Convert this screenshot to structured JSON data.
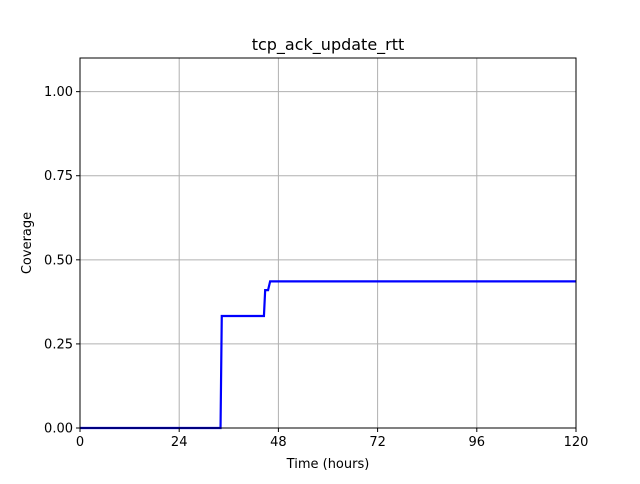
{
  "chart_data": {
    "type": "line",
    "title": "tcp_ack_update_rtt",
    "xlabel": "Time (hours)",
    "ylabel": "Coverage",
    "xlim": [
      0,
      120
    ],
    "ylim": [
      0,
      1.1
    ],
    "x_ticks": [
      0,
      24,
      48,
      72,
      96,
      120
    ],
    "x_tick_labels": [
      "0",
      "24",
      "48",
      "72",
      "96",
      "120"
    ],
    "y_ticks": [
      0,
      0.25,
      0.5,
      0.75,
      1.0
    ],
    "y_tick_labels": [
      "0.00",
      "0.25",
      "0.50",
      "0.75",
      "1.00"
    ],
    "grid": true,
    "legend": "none",
    "series": [
      {
        "color": "#0000ff",
        "x": [
          0,
          34.0,
          34.3,
          44.5,
          44.8,
          45.5,
          46.0,
          120
        ],
        "y": [
          0,
          0,
          0.333,
          0.333,
          0.41,
          0.41,
          0.436,
          0.436
        ]
      }
    ]
  }
}
